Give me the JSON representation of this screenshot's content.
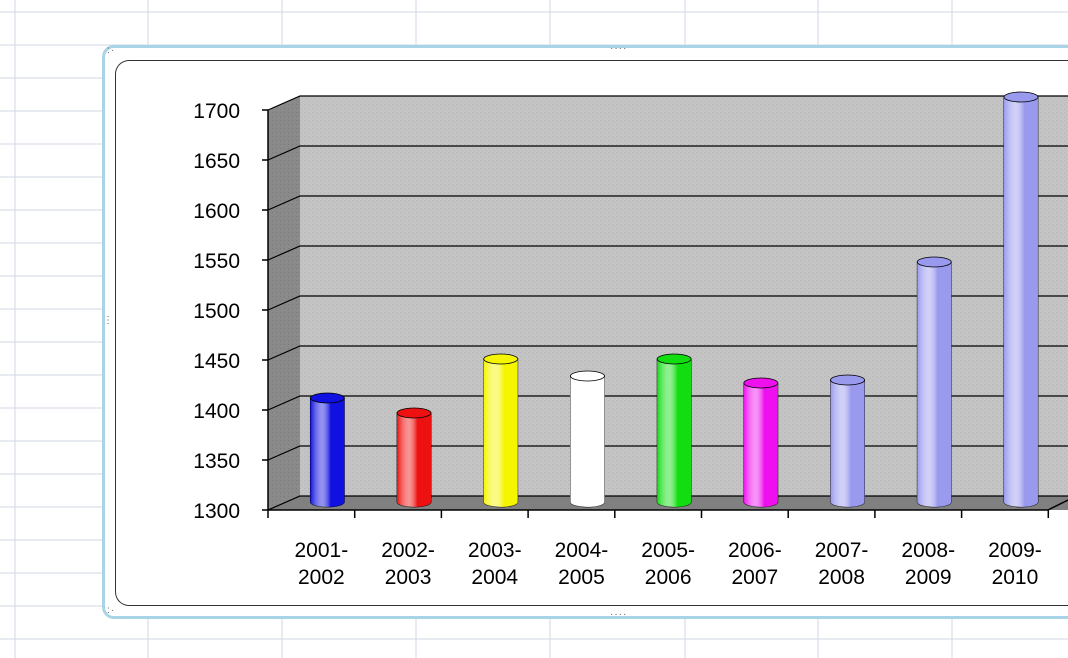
{
  "chart_data": {
    "type": "bar",
    "style": "3d-cylinder",
    "categories": [
      [
        "2001-",
        "2002"
      ],
      [
        "2002-",
        "2003"
      ],
      [
        "2003-",
        "2004"
      ],
      [
        "2004-",
        "2005"
      ],
      [
        "2005-",
        "2006"
      ],
      [
        "2006-",
        "2007"
      ],
      [
        "2007-",
        "2008"
      ],
      [
        "2008-",
        "2009"
      ],
      [
        "2009-",
        "2010"
      ]
    ],
    "values": [
      1404,
      1389,
      1443,
      1426,
      1443,
      1419,
      1422,
      1540,
      1705
    ],
    "bar_colors": [
      "#1010e0",
      "#ee1111",
      "#f5f500",
      "#ffffff",
      "#11dd11",
      "#ee11ee",
      "#9999ee",
      "#9999ee",
      "#9999ee"
    ],
    "ylim": [
      1300,
      1700
    ],
    "yticks": [
      "1700",
      "1650",
      "1600",
      "1550",
      "1500",
      "1450",
      "1400",
      "1350",
      "1300"
    ],
    "grid": true,
    "wall_color": "#c0c0c0",
    "floor_color": "#808080"
  }
}
